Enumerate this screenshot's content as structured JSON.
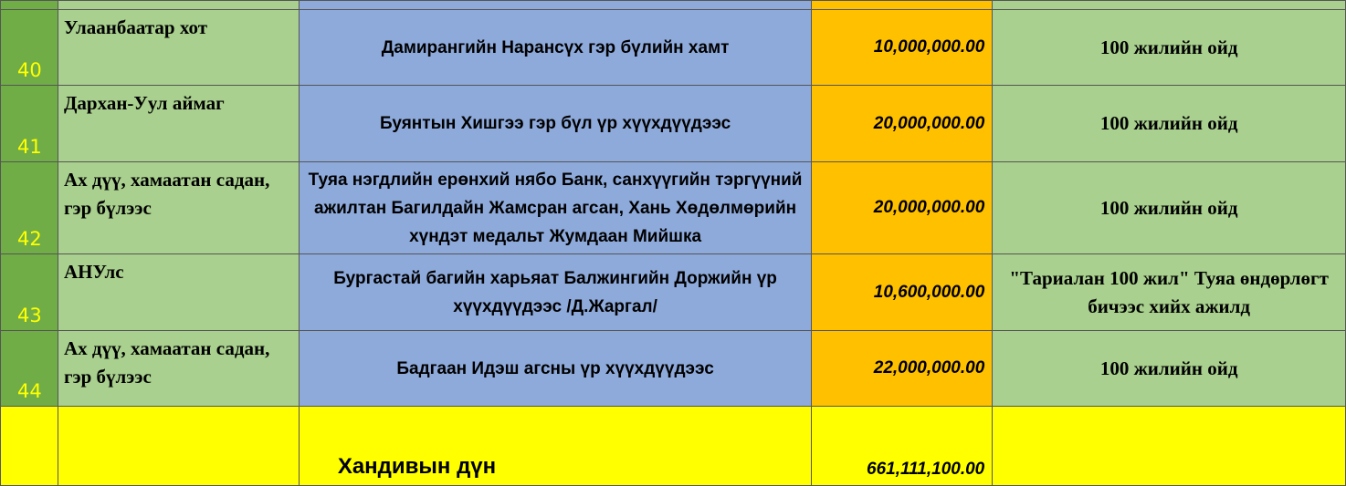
{
  "table": {
    "rows": [
      {
        "number": "40",
        "place": "Улаанбаатар хот",
        "donor": "Дамирангийн Нарансүх гэр бүлийн хамт",
        "amount": "10,000,000.00",
        "purpose": "100 жилийн ойд"
      },
      {
        "number": "41",
        "place": "Дархан-Уул аймаг",
        "donor": "Буянтын Хишгээ гэр бүл үр хүүхдүүдээс",
        "amount": "20,000,000.00",
        "purpose": "100 жилийн ойд"
      },
      {
        "number": "42",
        "place": "Ах дүү, хамаатан садан, гэр бүлээс",
        "donor": "Туяа нэгдлийн ерөнхий нябо Банк, санхүүгийн тэргүүний ажилтан Багилдайн Жамсран агсан, Хань Хөдөлмөрийн хүндэт медальт Жумдаан Мийшка",
        "amount": "20,000,000.00",
        "purpose": "100 жилийн ойд"
      },
      {
        "number": "43",
        "place": "АНУлс",
        "donor": "Бургастай багийн харьяат Балжингийн Доржийн үр хүүхдүүдээс /Д.Жаргал/",
        "amount": "10,600,000.00",
        "purpose": "\"Тариалан 100 жил\" Туяа өндөрлөгт бичээс хийх ажилд"
      },
      {
        "number": "44",
        "place": "Ах дүү, хамаатан садан, гэр бүлээс",
        "donor": "Бадгаан Идэш агсны үр хүүхдүүдээс",
        "amount": "22,000,000.00",
        "purpose": "100 жилийн ойд"
      }
    ],
    "total": {
      "label": "Хандивын дүн",
      "amount": "661,111,100.00"
    }
  }
}
